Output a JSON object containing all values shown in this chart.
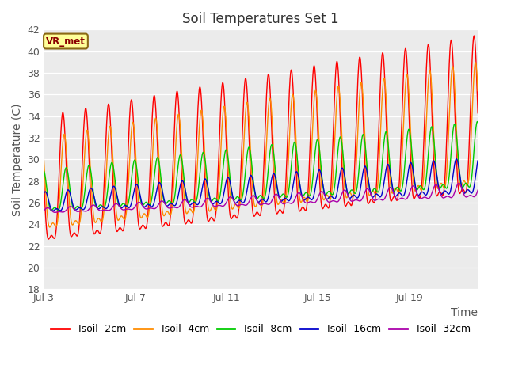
{
  "title": "Soil Temperatures Set 1",
  "ylabel": "Soil Temperature (C)",
  "ylim": [
    18,
    42
  ],
  "yticks": [
    18,
    20,
    22,
    24,
    26,
    28,
    30,
    32,
    34,
    36,
    38,
    40,
    42
  ],
  "xtick_labels": [
    "Jul 3",
    "Jul 7",
    "Jul 11",
    "Jul 15",
    "Jul 19"
  ],
  "xtick_positions": [
    0,
    96,
    192,
    288,
    384
  ],
  "xlim": [
    0,
    456
  ],
  "annotation_text": "VR_met",
  "annotation_color": "#8B0000",
  "annotation_bg": "#FFFF99",
  "annotation_border": "#8B6914",
  "series": [
    {
      "label": "Tsoil -2cm",
      "color": "#FF0000",
      "base_start": 26.5,
      "base_end": 32.0,
      "amp_start": 7.5,
      "amp_end": 9.5,
      "period_hours": 24,
      "phase_shift": 14.0,
      "asymmetry": 0.35
    },
    {
      "label": "Tsoil -4cm",
      "color": "#FF8C00",
      "base_start": 26.5,
      "base_end": 31.5,
      "amp_start": 5.5,
      "amp_end": 7.5,
      "period_hours": 24,
      "phase_shift": 15.5,
      "asymmetry": 0.38
    },
    {
      "label": "Tsoil -8cm",
      "color": "#00CC00",
      "base_start": 26.5,
      "base_end": 29.5,
      "amp_start": 2.5,
      "amp_end": 4.0,
      "period_hours": 24,
      "phase_shift": 17.5,
      "asymmetry": 0.42
    },
    {
      "label": "Tsoil -16cm",
      "color": "#0000CC",
      "base_start": 25.8,
      "base_end": 28.0,
      "amp_start": 1.2,
      "amp_end": 2.2,
      "period_hours": 24,
      "phase_shift": 19.5,
      "asymmetry": 0.48
    },
    {
      "label": "Tsoil -32cm",
      "color": "#AA00AA",
      "base_start": 25.2,
      "base_end": 27.0,
      "amp_start": 0.3,
      "amp_end": 0.9,
      "period_hours": 24,
      "phase_shift": 22.0,
      "asymmetry": 0.5
    }
  ],
  "plot_bg": "#EBEBEB",
  "title_fontsize": 12,
  "axis_label_fontsize": 10,
  "tick_fontsize": 9,
  "legend_fontsize": 9
}
